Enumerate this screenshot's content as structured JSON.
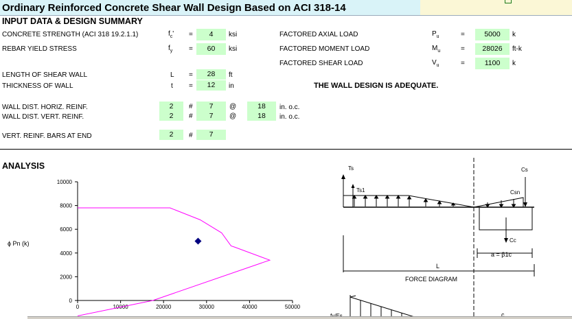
{
  "title": "Ordinary Reinforced Concrete Shear Wall Design Based on ACI 318-14",
  "section_input": "INPUT DATA & DESIGN SUMMARY",
  "inputs": {
    "concrete_label": "CONCRETE STRENGTH (ACI 318 19.2.1.1)",
    "concrete_sym": "fc'",
    "concrete_val": "4",
    "concrete_unit": "ksi",
    "rebar_label": "REBAR YIELD STRESS",
    "rebar_sym": "fy",
    "rebar_val": "60",
    "rebar_unit": "ksi",
    "axial_label": "FACTORED AXIAL LOAD",
    "axial_sym": "Pu",
    "axial_val": "5000",
    "axial_unit": "k",
    "moment_label": "FACTORED MOMENT LOAD",
    "moment_sym": "Mu",
    "moment_val": "28026",
    "moment_unit": "ft-k",
    "shear_label": "FACTORED SHEAR LOAD",
    "shear_sym": "Vu",
    "shear_val": "1100",
    "shear_unit": "k",
    "length_label": "LENGTH OF SHEAR WALL",
    "length_sym": "L",
    "length_val": "28",
    "length_unit": "ft",
    "thick_label": "THICKNESS OF  WALL",
    "thick_sym": "t",
    "thick_val": "12",
    "thick_unit": "in",
    "horiz_label": "WALL DIST. HORIZ. REINF.",
    "horiz_n": "2",
    "horiz_bar": "7",
    "horiz_sp": "18",
    "horiz_unit": "in. o.c.",
    "vert_label": "WALL DIST. VERT. REINF.",
    "vert_n": "2",
    "vert_bar": "7",
    "vert_sp": "18",
    "vert_unit": "in. o.c.",
    "end_label": "VERT. REINF. BARS AT END",
    "end_n": "2",
    "end_bar": "7",
    "eq": "=",
    "hash": "#",
    "at": "@"
  },
  "status": "THE WALL DESIGN IS ADEQUATE.",
  "section_analysis": "ANALYSIS",
  "chart_data": {
    "type": "line",
    "ylabel": "ϕ Pn (k)",
    "xlabel": "",
    "xlim": [
      0,
      50000
    ],
    "ylim": [
      0,
      10000
    ],
    "x_ticks": [
      "0",
      "10000",
      "20000",
      "30000",
      "40000",
      "50000"
    ],
    "y_ticks": [
      "0",
      "2000",
      "4000",
      "6000",
      "8000",
      "10000"
    ],
    "series": [
      {
        "type": "line",
        "color": "#ff00ff",
        "x": [
          0,
          21500,
          28500,
          33500,
          35700,
          36500,
          44700,
          17500,
          0
        ],
        "y": [
          7800,
          7800,
          6800,
          5700,
          4600,
          4500,
          3400,
          0,
          -1300
        ]
      },
      {
        "type": "scatter",
        "color": "#000080",
        "marker": "diamond",
        "x": [
          28026
        ],
        "y": [
          5000
        ]
      }
    ],
    "grid": false
  },
  "diagram": {
    "ts": "Ts",
    "ts1": "Ts1",
    "cs": "Cs",
    "csn": "Csn",
    "cc": "Cc",
    "a_eq": "a  =  β1c",
    "l": "L",
    "force_diagram": "FORCE  DIAGRAM",
    "c": "c",
    "fyfs": "fy/Es"
  }
}
